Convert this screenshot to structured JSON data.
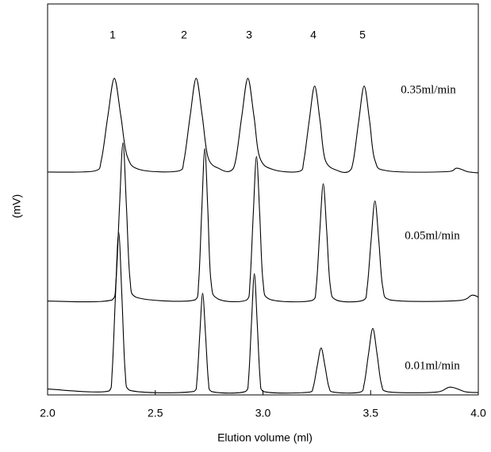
{
  "chart_data": {
    "type": "line",
    "x_label": "Elution volume (ml)",
    "y_label": "(mV)",
    "xlim": [
      2.0,
      4.0
    ],
    "ylim": [
      0,
      100
    ],
    "xticks": [
      {
        "value": 2.0,
        "label": "2.0"
      },
      {
        "value": 2.5,
        "label": "2.5"
      },
      {
        "value": 3.0,
        "label": "3.0"
      },
      {
        "value": 3.5,
        "label": "3.5"
      },
      {
        "value": 4.0,
        "label": "4.0"
      }
    ],
    "annotations": [
      "1",
      "2",
      "3",
      "4",
      "5"
    ],
    "series": [
      {
        "name": "0.35ml/min",
        "color": "#000000",
        "x": [
          2.0,
          2.22,
          2.25,
          2.28,
          2.31,
          2.34,
          2.37,
          2.43,
          2.61,
          2.634,
          2.662,
          2.69,
          2.718,
          2.746,
          2.8,
          2.85,
          2.874,
          2.902,
          2.93,
          2.958,
          2.986,
          3.05,
          3.17,
          3.19,
          3.215,
          3.24,
          3.265,
          3.29,
          3.35,
          3.4,
          3.42,
          3.445,
          3.47,
          3.495,
          3.52,
          3.58,
          3.85,
          3.9,
          3.95,
          4.0
        ],
        "values": [
          57,
          57.3,
          60.2,
          71.4,
          81,
          71.4,
          61,
          57.6,
          57.3,
          60.2,
          71.4,
          81,
          71.4,
          60.6,
          57.8,
          57.3,
          60.2,
          71.4,
          81,
          71.4,
          60.6,
          57.6,
          57.2,
          60,
          70.2,
          79,
          70.2,
          60,
          57.3,
          57.2,
          60,
          70.2,
          79,
          70.2,
          60,
          57.3,
          57.1,
          58,
          57.1,
          56.8
        ]
      },
      {
        "name": "0.05ml/min",
        "color": "#000000",
        "x": [
          2.0,
          2.3,
          2.318,
          2.334,
          2.35,
          2.366,
          2.382,
          2.41,
          2.685,
          2.702,
          2.716,
          2.73,
          2.744,
          2.758,
          2.79,
          2.925,
          2.94,
          2.955,
          2.97,
          2.985,
          3.0,
          3.03,
          3.23,
          3.248,
          3.264,
          3.28,
          3.296,
          3.312,
          3.34,
          3.465,
          3.484,
          3.502,
          3.52,
          3.538,
          3.556,
          3.59,
          3.9,
          3.97,
          4.0
        ],
        "values": [
          24,
          24.3,
          29.5,
          48.3,
          64.5,
          48.3,
          30,
          25,
          24.3,
          29.3,
          47.4,
          63,
          47.4,
          29.5,
          24.6,
          24.3,
          29,
          46.2,
          61,
          46.2,
          29.2,
          24.5,
          24.2,
          28,
          42,
          54,
          42,
          28.2,
          24.3,
          24.2,
          27.5,
          39.4,
          49.6,
          39.4,
          27.7,
          24.3,
          24.1,
          25.5,
          25
        ]
      },
      {
        "name": "0.01ml/min",
        "color": "#000000",
        "x": [
          2.0,
          2.285,
          2.3,
          2.315,
          2.33,
          2.345,
          2.36,
          2.38,
          2.68,
          2.694,
          2.707,
          2.72,
          2.733,
          2.746,
          2.76,
          2.92,
          2.934,
          2.947,
          2.96,
          2.973,
          2.986,
          3.0,
          3.215,
          3.234,
          3.252,
          3.27,
          3.288,
          3.306,
          3.33,
          3.45,
          3.47,
          3.49,
          3.51,
          3.53,
          3.55,
          3.58,
          3.8,
          3.87,
          3.94,
          4.0
        ],
        "values": [
          1.5,
          1.0,
          6.1,
          25.2,
          41.6,
          25.2,
          6.1,
          1.2,
          0.9,
          4.0,
          15.8,
          26,
          15.8,
          4.0,
          0.9,
          0.9,
          4.7,
          18.8,
          31,
          18.8,
          4.7,
          0.9,
          0.7,
          2.1,
          7.4,
          12,
          7.4,
          2.1,
          0.7,
          0.7,
          2.8,
          10.4,
          17,
          10.4,
          2.8,
          0.8,
          0.7,
          2.0,
          0.8,
          0.6
        ]
      }
    ]
  }
}
